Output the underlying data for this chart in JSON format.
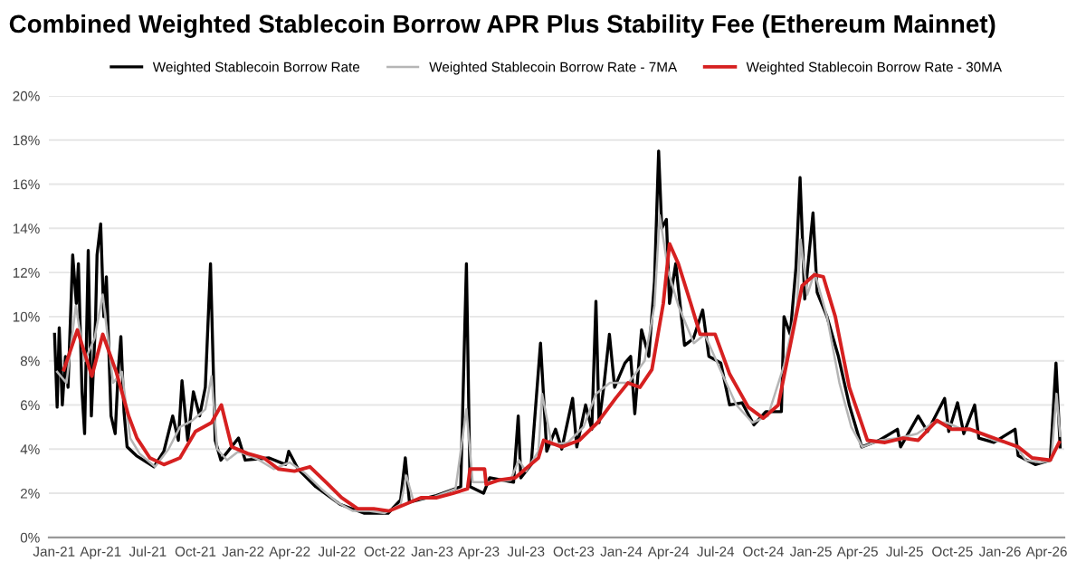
{
  "chart_data": {
    "type": "line",
    "title": "Combined Weighted Stablecoin Borrow APR Plus Stability Fee (Ethereum Mainnet)",
    "legend": "top",
    "grid": "y",
    "line_style": "solid",
    "marker": "none",
    "ylim": [
      0,
      20
    ],
    "yticks": [
      {
        "value": 0,
        "label": "0%"
      },
      {
        "value": 2,
        "label": "2%"
      },
      {
        "value": 4,
        "label": "4%"
      },
      {
        "value": 6,
        "label": "6%"
      },
      {
        "value": 8,
        "label": "8%"
      },
      {
        "value": 10,
        "label": "10%"
      },
      {
        "value": 12,
        "label": "12%"
      },
      {
        "value": 14,
        "label": "14%"
      },
      {
        "value": 16,
        "label": "16%"
      },
      {
        "value": 18,
        "label": "18%"
      },
      {
        "value": 20,
        "label": "20%"
      }
    ],
    "xlim": [
      "2020-12-22",
      "2026-05-05"
    ],
    "xticks": [
      {
        "value": "2021-01-01",
        "label": "Jan-21"
      },
      {
        "value": "2021-04-01",
        "label": "Apr-21"
      },
      {
        "value": "2021-07-01",
        "label": "Jul-21"
      },
      {
        "value": "2021-10-01",
        "label": "Oct-21"
      },
      {
        "value": "2022-01-01",
        "label": "Jan-22"
      },
      {
        "value": "2022-04-01",
        "label": "Apr-22"
      },
      {
        "value": "2022-07-01",
        "label": "Jul-22"
      },
      {
        "value": "2022-10-01",
        "label": "Oct-22"
      },
      {
        "value": "2023-01-01",
        "label": "Jan-23"
      },
      {
        "value": "2023-04-01",
        "label": "Apr-23"
      },
      {
        "value": "2023-07-01",
        "label": "Jul-23"
      },
      {
        "value": "2023-10-01",
        "label": "Oct-23"
      },
      {
        "value": "2024-01-01",
        "label": "Jan-24"
      },
      {
        "value": "2024-04-01",
        "label": "Apr-24"
      },
      {
        "value": "2024-07-01",
        "label": "Jul-24"
      },
      {
        "value": "2024-10-01",
        "label": "Oct-24"
      },
      {
        "value": "2025-01-01",
        "label": "Jan-25"
      },
      {
        "value": "2025-04-01",
        "label": "Apr-25"
      },
      {
        "value": "2025-07-01",
        "label": "Jul-25"
      },
      {
        "value": "2025-10-01",
        "label": "Oct-25"
      },
      {
        "value": "2026-01-01",
        "label": "Jan-26"
      },
      {
        "value": "2026-04-01",
        "label": "Apr-26"
      }
    ],
    "series": [
      {
        "name": "Weighted Stablecoin Borrow Rate",
        "color": "#000000",
        "x": [
          "2021-01-02",
          "2021-01-07",
          "2021-01-11",
          "2021-01-17",
          "2021-01-23",
          "2021-01-28",
          "2021-02-06",
          "2021-02-13",
          "2021-02-17",
          "2021-02-24",
          "2021-03-01",
          "2021-03-08",
          "2021-03-14",
          "2021-03-22",
          "2021-03-25",
          "2021-04-01",
          "2021-04-07",
          "2021-04-12",
          "2021-04-21",
          "2021-04-29",
          "2021-05-05",
          "2021-05-10",
          "2021-05-16",
          "2021-05-22",
          "2021-06-09",
          "2021-07-13",
          "2021-08-01",
          "2021-08-18",
          "2021-08-29",
          "2021-09-05",
          "2021-09-16",
          "2021-09-27",
          "2021-10-09",
          "2021-10-20",
          "2021-10-30",
          "2021-11-08",
          "2021-11-19",
          "2021-12-23",
          "2022-01-05",
          "2022-02-20",
          "2022-03-24",
          "2022-03-30",
          "2022-04-17",
          "2022-05-21",
          "2022-07-07",
          "2022-08-22",
          "2022-10-08",
          "2022-11-01",
          "2022-11-10",
          "2022-11-18",
          "2023-01-09",
          "2023-02-25",
          "2023-03-08",
          "2023-03-15",
          "2023-04-10",
          "2023-04-22",
          "2023-06-07",
          "2023-06-16",
          "2023-06-21",
          "2023-07-11",
          "2023-07-29",
          "2023-08-10",
          "2023-08-27",
          "2023-09-08",
          "2023-09-29",
          "2023-10-07",
          "2023-10-24",
          "2023-11-05",
          "2023-11-13",
          "2023-11-19",
          "2023-11-28",
          "2023-12-09",
          "2023-12-19",
          "2024-01-08",
          "2024-01-19",
          "2024-01-27",
          "2024-02-09",
          "2024-02-23",
          "2024-03-05",
          "2024-03-13",
          "2024-03-19",
          "2024-03-28",
          "2024-04-03",
          "2024-04-15",
          "2024-05-02",
          "2024-05-19",
          "2024-06-06",
          "2024-06-18",
          "2024-07-11",
          "2024-07-28",
          "2024-08-21",
          "2024-09-13",
          "2024-10-06",
          "2024-11-05",
          "2024-11-10",
          "2024-11-22",
          "2024-12-03",
          "2024-12-11",
          "2024-12-20",
          "2025-01-05",
          "2025-01-13",
          "2025-02-01",
          "2025-02-23",
          "2025-03-16",
          "2025-04-09",
          "2025-05-13",
          "2025-06-17",
          "2025-06-23",
          "2025-07-27",
          "2025-08-14",
          "2025-09-16",
          "2025-09-24",
          "2025-10-11",
          "2025-10-23",
          "2025-11-13",
          "2025-11-21",
          "2025-12-20",
          "2026-01-30",
          "2026-02-05",
          "2026-03-10",
          "2026-04-08",
          "2026-04-19",
          "2026-04-27"
        ],
        "values": [
          9.2,
          5.9,
          9.5,
          6.0,
          8.2,
          6.8,
          12.8,
          10.6,
          12.4,
          6.6,
          4.7,
          13.0,
          5.5,
          9.8,
          12.8,
          14.2,
          10.0,
          11.8,
          5.5,
          4.7,
          7.6,
          9.1,
          5.7,
          4.1,
          3.7,
          3.2,
          3.9,
          5.5,
          4.4,
          7.1,
          4.4,
          6.6,
          5.5,
          6.8,
          12.4,
          4.4,
          3.5,
          4.5,
          3.5,
          3.6,
          3.3,
          3.9,
          3.1,
          2.3,
          1.5,
          1.1,
          1.1,
          1.7,
          3.6,
          1.6,
          1.9,
          2.3,
          12.4,
          2.3,
          2.0,
          2.7,
          2.5,
          5.5,
          2.7,
          3.3,
          8.8,
          3.9,
          4.9,
          4.0,
          6.3,
          4.1,
          6.0,
          4.9,
          10.7,
          5.2,
          6.8,
          9.2,
          6.8,
          7.9,
          8.2,
          5.6,
          9.4,
          8.2,
          11.6,
          17.5,
          14.0,
          14.4,
          10.6,
          12.4,
          8.7,
          9.0,
          10.3,
          8.2,
          7.9,
          6.0,
          6.1,
          5.1,
          5.7,
          5.7,
          10.0,
          9.2,
          12.2,
          16.3,
          10.8,
          14.7,
          11.1,
          10.0,
          8.2,
          6.0,
          4.1,
          4.4,
          4.9,
          4.1,
          5.5,
          4.8,
          6.3,
          4.8,
          6.1,
          4.7,
          6.0,
          4.5,
          4.3,
          4.9,
          3.7,
          3.3,
          3.5,
          7.9,
          4.1
        ]
      },
      {
        "name": "Weighted Stablecoin Borrow Rate - 7MA",
        "color": "#b5b5b5",
        "x": [
          "2021-01-07",
          "2021-01-25",
          "2021-02-12",
          "2021-03-01",
          "2021-03-20",
          "2021-04-05",
          "2021-04-25",
          "2021-05-12",
          "2021-05-28",
          "2021-06-15",
          "2021-07-15",
          "2021-08-10",
          "2021-09-01",
          "2021-09-25",
          "2021-10-20",
          "2021-11-01",
          "2021-11-12",
          "2021-12-01",
          "2021-12-23",
          "2022-02-01",
          "2022-03-01",
          "2022-04-01",
          "2022-05-01",
          "2022-06-01",
          "2022-07-01",
          "2022-08-01",
          "2022-09-01",
          "2022-10-01",
          "2022-11-01",
          "2022-11-12",
          "2022-11-25",
          "2023-01-01",
          "2023-02-15",
          "2023-03-08",
          "2023-03-20",
          "2023-04-20",
          "2023-06-01",
          "2023-06-17",
          "2023-07-01",
          "2023-07-25",
          "2023-08-01",
          "2023-08-20",
          "2023-09-20",
          "2023-10-20",
          "2023-11-13",
          "2023-12-10",
          "2024-01-15",
          "2024-02-15",
          "2024-03-05",
          "2024-03-15",
          "2024-04-01",
          "2024-04-20",
          "2024-05-20",
          "2024-06-10",
          "2024-07-10",
          "2024-08-10",
          "2024-09-10",
          "2024-10-10",
          "2024-11-10",
          "2024-12-05",
          "2024-12-12",
          "2024-12-25",
          "2025-01-08",
          "2025-02-01",
          "2025-02-25",
          "2025-03-20",
          "2025-04-10",
          "2025-05-15",
          "2025-06-20",
          "2025-07-25",
          "2025-08-25",
          "2025-09-20",
          "2025-10-20",
          "2025-11-15",
          "2025-12-20",
          "2026-01-30",
          "2026-02-20",
          "2026-03-20",
          "2026-04-10",
          "2026-04-20",
          "2026-04-27"
        ],
        "values": [
          7.5,
          7.0,
          10.5,
          8.0,
          9.0,
          11.0,
          7.0,
          7.5,
          4.5,
          3.8,
          3.2,
          4.0,
          5.0,
          5.3,
          5.8,
          7.3,
          4.0,
          3.5,
          3.9,
          3.5,
          3.1,
          3.4,
          2.9,
          2.2,
          1.6,
          1.2,
          1.2,
          1.1,
          1.5,
          2.8,
          1.7,
          1.8,
          2.2,
          5.8,
          2.5,
          2.5,
          2.6,
          3.5,
          3.0,
          3.9,
          6.5,
          4.2,
          4.3,
          5.0,
          6.5,
          7.0,
          7.0,
          8.0,
          10.5,
          14.6,
          12.0,
          10.5,
          8.8,
          9.2,
          7.6,
          6.0,
          5.2,
          5.5,
          7.8,
          10.5,
          13.5,
          11.0,
          12.0,
          10.0,
          7.0,
          5.0,
          4.1,
          4.4,
          4.5,
          4.7,
          5.2,
          5.2,
          4.9,
          4.8,
          4.4,
          4.2,
          3.5,
          3.4,
          3.5,
          6.5,
          4.6
        ]
      },
      {
        "name": "Weighted Stablecoin Borrow Rate - 30MA",
        "color": "#d62020",
        "x": [
          "2021-01-20",
          "2021-02-15",
          "2021-03-15",
          "2021-04-05",
          "2021-05-01",
          "2021-05-25",
          "2021-06-10",
          "2021-07-05",
          "2021-08-01",
          "2021-09-01",
          "2021-10-01",
          "2021-11-01",
          "2021-11-20",
          "2021-12-10",
          "2022-01-10",
          "2022-02-10",
          "2022-03-10",
          "2022-04-10",
          "2022-05-10",
          "2022-06-10",
          "2022-07-10",
          "2022-08-10",
          "2022-09-10",
          "2022-10-10",
          "2022-11-10",
          "2022-12-10",
          "2023-01-10",
          "2023-02-10",
          "2023-03-10",
          "2023-03-15",
          "2023-04-12",
          "2023-04-15",
          "2023-05-10",
          "2023-06-10",
          "2023-07-10",
          "2023-07-25",
          "2023-08-04",
          "2023-09-08",
          "2023-10-12",
          "2023-11-16",
          "2023-12-21",
          "2024-01-14",
          "2024-02-06",
          "2024-02-29",
          "2024-03-22",
          "2024-04-03",
          "2024-04-20",
          "2024-05-14",
          "2024-06-01",
          "2024-06-30",
          "2024-07-28",
          "2024-09-02",
          "2024-10-01",
          "2024-10-30",
          "2024-11-22",
          "2024-12-15",
          "2025-01-08",
          "2025-01-25",
          "2025-02-17",
          "2025-03-16",
          "2025-04-20",
          "2025-05-24",
          "2025-06-28",
          "2025-07-27",
          "2025-09-01",
          "2025-09-30",
          "2025-11-04",
          "2026-01-01",
          "2026-02-05",
          "2026-03-04",
          "2026-04-08",
          "2026-04-25"
        ],
        "values": [
          7.6,
          9.4,
          7.3,
          9.2,
          7.5,
          5.5,
          4.5,
          3.6,
          3.3,
          3.6,
          4.8,
          5.2,
          6.0,
          4.1,
          3.8,
          3.6,
          3.1,
          3.0,
          3.2,
          2.5,
          1.8,
          1.3,
          1.3,
          1.2,
          1.5,
          1.8,
          1.8,
          2.0,
          2.2,
          3.1,
          3.1,
          2.4,
          2.6,
          2.7,
          3.3,
          3.6,
          4.4,
          4.1,
          4.4,
          5.2,
          6.3,
          7.0,
          6.8,
          7.6,
          10.6,
          13.3,
          12.4,
          10.6,
          9.2,
          9.2,
          7.4,
          5.9,
          5.4,
          6.0,
          8.7,
          11.4,
          11.9,
          11.8,
          10.0,
          6.8,
          4.4,
          4.3,
          4.5,
          4.4,
          5.3,
          4.9,
          4.9,
          4.4,
          4.1,
          3.6,
          3.5,
          4.3
        ]
      }
    ]
  }
}
